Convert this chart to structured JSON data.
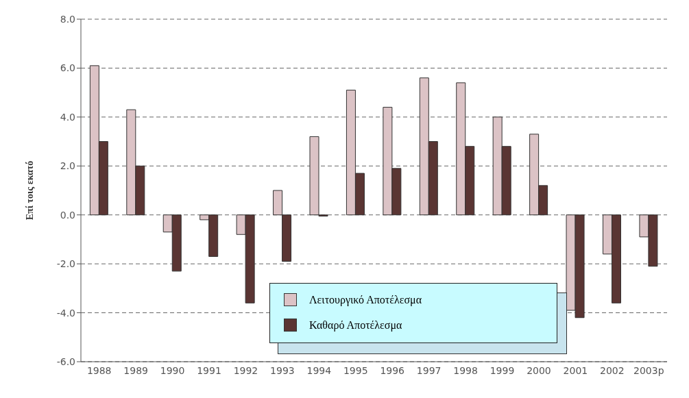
{
  "chart_data": {
    "type": "bar",
    "ylabel": "Επί τοις εκατό",
    "categories": [
      "1988",
      "1989",
      "1990",
      "1991",
      "1992",
      "1993",
      "1994",
      "1995",
      "1996",
      "1997",
      "1998",
      "1999",
      "2000",
      "2001",
      "2002",
      "2003p"
    ],
    "series": [
      {
        "name": "Λειτουργικό Αποτέλεσμα",
        "color": "#dcc3c6",
        "values": [
          6.1,
          4.3,
          -0.7,
          -0.2,
          -0.8,
          1.0,
          3.2,
          5.1,
          4.4,
          5.6,
          5.4,
          4.0,
          3.3,
          -3.9,
          -1.6,
          -0.9
        ]
      },
      {
        "name": "Καθαρό Αποτέλεσμα",
        "color": "#5a3533",
        "values": [
          3.0,
          2.0,
          -2.3,
          -1.7,
          -3.6,
          -1.9,
          -0.05,
          1.7,
          1.9,
          3.0,
          2.8,
          2.8,
          1.2,
          -4.2,
          -3.6,
          -2.1
        ]
      }
    ],
    "ylim": [
      -6,
      8
    ],
    "yticks": [
      {
        "value": 8,
        "label": "8.0"
      },
      {
        "value": 6,
        "label": "6.0"
      },
      {
        "value": 4,
        "label": "4.0"
      },
      {
        "value": 2,
        "label": "2.0"
      },
      {
        "value": 0,
        "label": "0.0"
      },
      {
        "value": -2,
        "label": "-2.0"
      },
      {
        "value": -4,
        "label": "-4.0"
      },
      {
        "value": -6,
        "label": "-6.0"
      }
    ],
    "grid": "y",
    "line_style": "dashed",
    "legend": "bottom"
  }
}
